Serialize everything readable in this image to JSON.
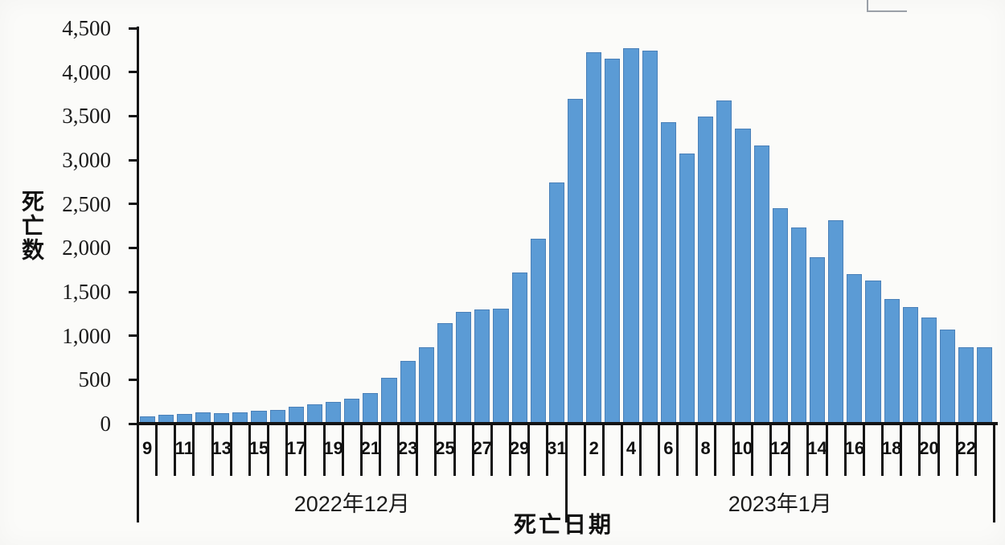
{
  "colors": {
    "bar_fill": "#5b9bd5",
    "bar_border": "#4a80b8",
    "axis": "#141414",
    "text": "#1a1a1a",
    "bracket": "#9aa0a8",
    "background": "#fbfbf9"
  },
  "decor": {
    "corner_bracket_icon": "cropped-box-corner"
  },
  "chart_data": {
    "type": "bar",
    "title": "",
    "ylabel": "死亡数",
    "xlabel": "死亡日期",
    "ylim": [
      0,
      4500
    ],
    "grid": false,
    "legend": null,
    "y_tick_values": [
      0,
      500,
      1000,
      1500,
      2000,
      2500,
      3000,
      3500,
      4000,
      4500
    ],
    "y_tick_labels": [
      "0",
      "500",
      "1,000",
      "1,500",
      "2,000",
      "2,500",
      "3,000",
      "3,500",
      "4,000",
      "4,500"
    ],
    "x_label_every": 2,
    "x_tick_labels": [
      "9",
      "11",
      "13",
      "15",
      "17",
      "19",
      "21",
      "23",
      "25",
      "27",
      "29",
      "31",
      "2",
      "4",
      "6",
      "8",
      "10",
      "12",
      "14",
      "16",
      "18",
      "20",
      "22"
    ],
    "month_groups": [
      {
        "label": "2022年12月",
        "num_days": 23
      },
      {
        "label": "2023年1月",
        "num_days": 23
      }
    ],
    "categories": [
      "12-09",
      "12-10",
      "12-11",
      "12-12",
      "12-13",
      "12-14",
      "12-15",
      "12-16",
      "12-17",
      "12-18",
      "12-19",
      "12-20",
      "12-21",
      "12-22",
      "12-23",
      "12-24",
      "12-25",
      "12-26",
      "12-27",
      "12-28",
      "12-29",
      "12-30",
      "12-31",
      "01-01",
      "01-02",
      "01-03",
      "01-04",
      "01-05",
      "01-06",
      "01-07",
      "01-08",
      "01-09",
      "01-10",
      "01-11",
      "01-12",
      "01-13",
      "01-14",
      "01-15",
      "01-16",
      "01-17",
      "01-18",
      "01-19",
      "01-20",
      "01-21",
      "01-22",
      "01-23"
    ],
    "values": [
      85,
      105,
      110,
      125,
      120,
      130,
      145,
      160,
      190,
      215,
      245,
      280,
      350,
      520,
      715,
      870,
      1140,
      1270,
      1300,
      1305,
      1720,
      2100,
      2740,
      3695,
      4230,
      4155,
      4270,
      4245,
      3430,
      3070,
      3490,
      3680,
      3360,
      3165,
      2450,
      2230,
      1890,
      2310,
      1700,
      1630,
      1420,
      1330,
      1210,
      1070,
      870,
      870
    ]
  }
}
